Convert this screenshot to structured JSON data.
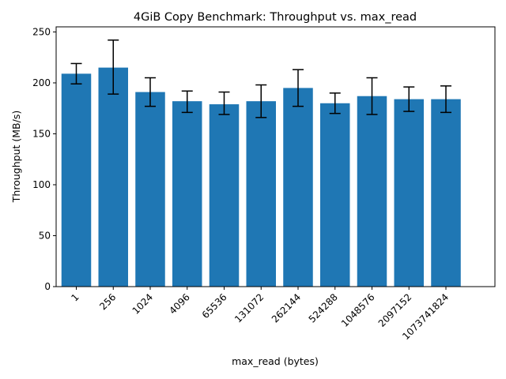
{
  "chart_data": {
    "type": "bar",
    "title": "4GiB Copy Benchmark: Throughput vs. max_read",
    "xlabel": "max_read (bytes)",
    "ylabel": "Throughput (MB/s)",
    "ylim": [
      0,
      255
    ],
    "yticks": [
      0,
      50,
      100,
      150,
      200,
      250
    ],
    "grid": false,
    "categories": [
      "1",
      "256",
      "1024",
      "4096",
      "65536",
      "131072",
      "262144",
      "524288",
      "1048576",
      "2097152",
      "1073741824"
    ],
    "values": [
      209,
      215,
      191,
      182,
      179,
      182,
      195,
      180,
      187,
      184,
      184
    ],
    "error_low": [
      199,
      189,
      177,
      171,
      169,
      166,
      177,
      170,
      169,
      172,
      171
    ],
    "error_high": [
      219,
      242,
      205,
      192,
      191,
      198,
      213,
      190,
      205,
      196,
      197
    ],
    "bar_color": "#1f77b4",
    "error_color": "#000000"
  }
}
